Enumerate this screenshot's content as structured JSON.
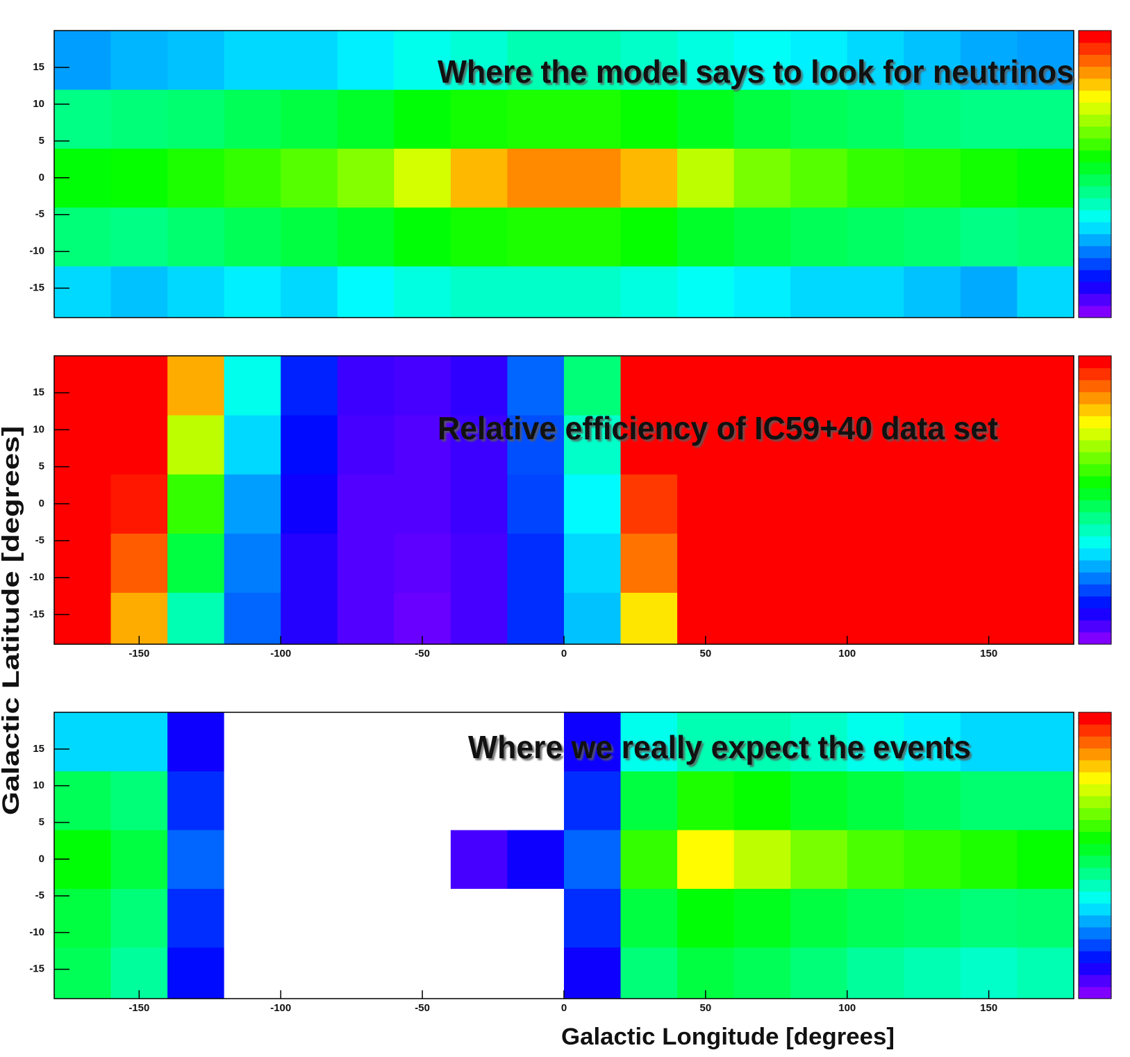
{
  "chart_data": [
    {
      "type": "heatmap",
      "title": "Where the model says to look for neutrinos",
      "xlim": [
        -180,
        180
      ],
      "ylim": [
        -19,
        20
      ],
      "yticks": [
        -15,
        -10,
        -5,
        0,
        5,
        10,
        15
      ],
      "xbins": [
        -180,
        -160,
        -140,
        -120,
        -100,
        -80,
        -60,
        -40,
        -20,
        0,
        20,
        40,
        60,
        80,
        100,
        120,
        140,
        160,
        180
      ],
      "ybins": [
        -19,
        -12,
        -4,
        4,
        12,
        20
      ],
      "z": [
        [
          0.3,
          0.28,
          0.3,
          0.32,
          0.3,
          0.33,
          0.36,
          0.38,
          0.38,
          0.38,
          0.36,
          0.34,
          0.32,
          0.3,
          0.3,
          0.28,
          0.26,
          0.3
        ],
        [
          0.45,
          0.44,
          0.46,
          0.48,
          0.5,
          0.52,
          0.55,
          0.57,
          0.58,
          0.58,
          0.56,
          0.52,
          0.5,
          0.48,
          0.47,
          0.46,
          0.44,
          0.45
        ],
        [
          0.55,
          0.56,
          0.58,
          0.6,
          0.63,
          0.67,
          0.74,
          0.84,
          0.88,
          0.88,
          0.84,
          0.72,
          0.66,
          0.63,
          0.6,
          0.59,
          0.57,
          0.55
        ],
        [
          0.44,
          0.45,
          0.46,
          0.48,
          0.5,
          0.52,
          0.55,
          0.57,
          0.58,
          0.58,
          0.56,
          0.53,
          0.5,
          0.48,
          0.47,
          0.45,
          0.44,
          0.44
        ],
        [
          0.25,
          0.27,
          0.28,
          0.3,
          0.3,
          0.32,
          0.35,
          0.37,
          0.4,
          0.4,
          0.38,
          0.36,
          0.34,
          0.32,
          0.3,
          0.28,
          0.26,
          0.25
        ]
      ]
    },
    {
      "type": "heatmap",
      "title": "Relative efficiency of IC59+40 data set",
      "ylabel": "Galactic Latitude [degrees]",
      "xlim": [
        -180,
        180
      ],
      "ylim": [
        -19,
        20
      ],
      "yticks": [
        -15,
        -10,
        -5,
        0,
        5,
        10,
        15
      ],
      "xticks": [
        -150,
        -100,
        -50,
        0,
        50,
        100,
        150
      ],
      "xbins": [
        -180,
        -160,
        -140,
        -120,
        -100,
        -80,
        -60,
        -40,
        -20,
        0,
        20,
        40,
        60,
        80,
        100,
        120,
        140,
        160,
        180
      ],
      "ybins": [
        -19,
        -12,
        -4,
        4,
        12,
        20
      ],
      "z": [
        [
          1,
          0.85,
          0.4,
          0.2,
          0.08,
          0.04,
          0.02,
          0.05,
          0.15,
          0.28,
          0.8,
          1,
          1,
          1,
          1,
          1,
          1,
          1
        ],
        [
          1,
          0.92,
          0.5,
          0.22,
          0.08,
          0.04,
          0.03,
          0.05,
          0.15,
          0.3,
          0.9,
          1,
          1,
          1,
          1,
          1,
          1,
          1
        ],
        [
          1,
          0.98,
          0.6,
          0.25,
          0.1,
          0.04,
          0.04,
          0.06,
          0.17,
          0.33,
          0.95,
          1,
          1,
          1,
          1,
          1,
          1,
          1
        ],
        [
          1,
          1,
          0.72,
          0.3,
          0.12,
          0.05,
          0.04,
          0.06,
          0.18,
          0.38,
          1,
          1,
          1,
          1,
          1,
          1,
          1,
          1
        ],
        [
          1,
          1,
          0.85,
          0.35,
          0.14,
          0.06,
          0.05,
          0.07,
          0.2,
          0.45,
          1,
          1,
          1,
          1,
          1,
          1,
          1,
          1
        ]
      ]
    },
    {
      "type": "heatmap",
      "title": "Where we really expect the events",
      "xlabel": "Galactic Longitude [degrees]",
      "xlim": [
        -180,
        180
      ],
      "ylim": [
        -19,
        20
      ],
      "yticks": [
        -15,
        -10,
        -5,
        0,
        5,
        10,
        15
      ],
      "xticks": [
        -150,
        -100,
        -50,
        0,
        50,
        100,
        150
      ],
      "xbins": [
        -180,
        -160,
        -140,
        -120,
        -100,
        -80,
        -60,
        -40,
        -20,
        0,
        20,
        40,
        60,
        80,
        100,
        120,
        140,
        160,
        180
      ],
      "ybins": [
        -19,
        -12,
        -4,
        4,
        12,
        20
      ],
      "z": [
        [
          0.48,
          0.42,
          0.12,
          null,
          null,
          null,
          null,
          null,
          null,
          0.1,
          0.45,
          0.5,
          0.48,
          0.45,
          0.42,
          0.4,
          0.38,
          0.4
        ],
        [
          0.5,
          0.45,
          0.15,
          null,
          null,
          null,
          null,
          null,
          null,
          0.15,
          0.5,
          0.55,
          0.53,
          0.5,
          0.48,
          0.47,
          0.45,
          0.46
        ],
        [
          0.55,
          0.5,
          0.2,
          null,
          null,
          null,
          null,
          0.05,
          0.1,
          0.2,
          0.6,
          0.78,
          0.72,
          0.66,
          0.62,
          0.6,
          0.58,
          0.56
        ],
        [
          0.48,
          0.45,
          0.15,
          null,
          null,
          null,
          null,
          null,
          null,
          0.15,
          0.5,
          0.58,
          0.56,
          0.52,
          0.5,
          0.48,
          0.46,
          0.46
        ],
        [
          0.3,
          0.3,
          0.1,
          null,
          null,
          null,
          null,
          null,
          null,
          0.1,
          0.35,
          0.4,
          0.4,
          0.38,
          0.35,
          0.32,
          0.3,
          0.3
        ]
      ]
    }
  ]
}
